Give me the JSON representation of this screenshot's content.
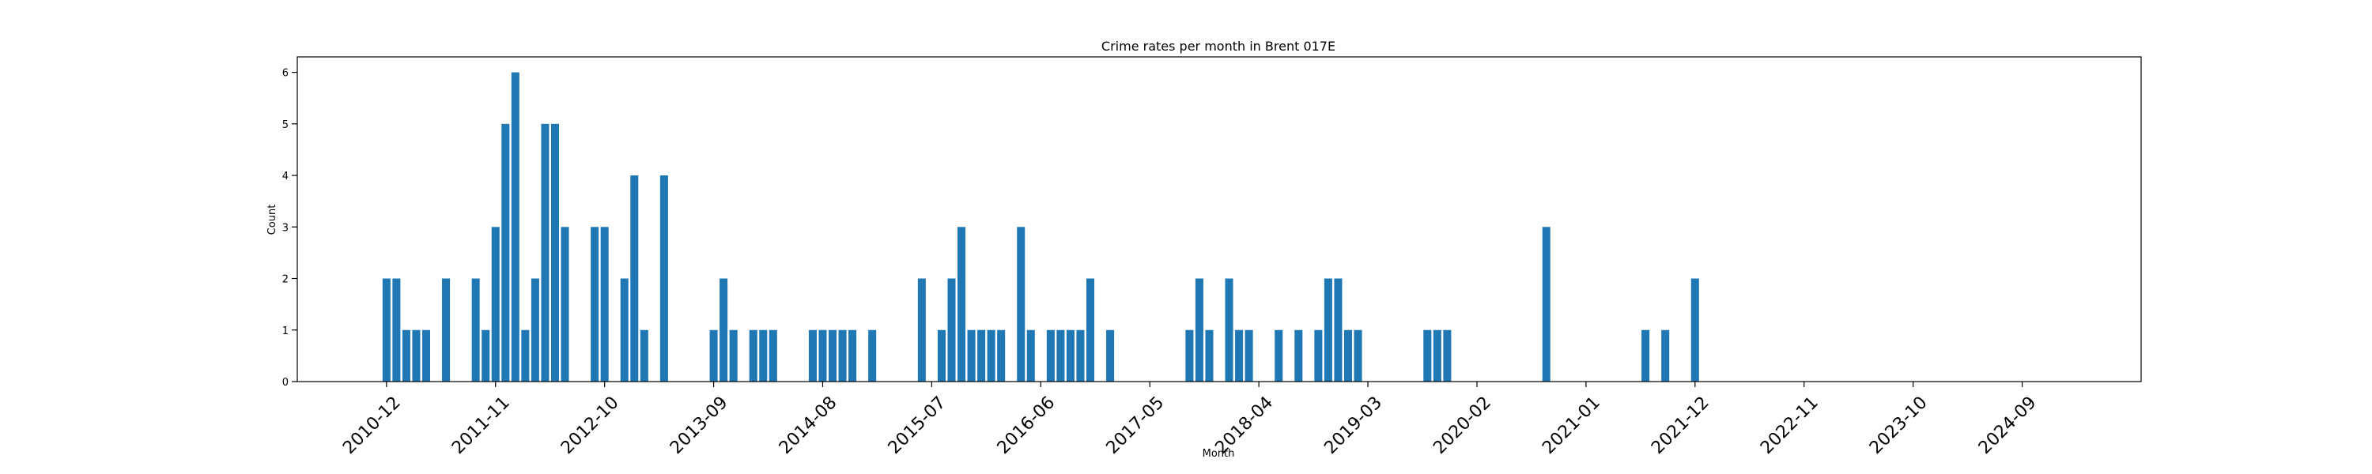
{
  "chart_data": {
    "type": "bar",
    "title": "Crime rates per month in Brent 017E",
    "xlabel": "Month",
    "ylabel": "Count",
    "ylim": [
      0,
      6.3
    ],
    "yticks": [
      0,
      1,
      2,
      3,
      4,
      5,
      6
    ],
    "xlim": [
      "2010-03",
      "2025-09"
    ],
    "xtick_labels": [
      "2010-12",
      "2011-11",
      "2012-10",
      "2013-09",
      "2014-08",
      "2015-07",
      "2016-06",
      "2017-05",
      "2018-04",
      "2019-03",
      "2020-02",
      "2021-01",
      "2021-12",
      "2022-11",
      "2023-10",
      "2024-09"
    ],
    "bar_color": "#1f77b4",
    "grid": false,
    "points": [
      {
        "x": "2010-12",
        "y": 2
      },
      {
        "x": "2011-01",
        "y": 2
      },
      {
        "x": "2011-02",
        "y": 1
      },
      {
        "x": "2011-03",
        "y": 1
      },
      {
        "x": "2011-04",
        "y": 1
      },
      {
        "x": "2011-06",
        "y": 2
      },
      {
        "x": "2011-09",
        "y": 2
      },
      {
        "x": "2011-10",
        "y": 1
      },
      {
        "x": "2011-11",
        "y": 3
      },
      {
        "x": "2011-12",
        "y": 5
      },
      {
        "x": "2012-01",
        "y": 6
      },
      {
        "x": "2012-02",
        "y": 1
      },
      {
        "x": "2012-03",
        "y": 2
      },
      {
        "x": "2012-04",
        "y": 5
      },
      {
        "x": "2012-05",
        "y": 5
      },
      {
        "x": "2012-06",
        "y": 3
      },
      {
        "x": "2012-09",
        "y": 3
      },
      {
        "x": "2012-10",
        "y": 3
      },
      {
        "x": "2012-12",
        "y": 2
      },
      {
        "x": "2013-01",
        "y": 4
      },
      {
        "x": "2013-02",
        "y": 1
      },
      {
        "x": "2013-04",
        "y": 4
      },
      {
        "x": "2013-09",
        "y": 1
      },
      {
        "x": "2013-10",
        "y": 2
      },
      {
        "x": "2013-11",
        "y": 1
      },
      {
        "x": "2014-01",
        "y": 1
      },
      {
        "x": "2014-02",
        "y": 1
      },
      {
        "x": "2014-03",
        "y": 1
      },
      {
        "x": "2014-07",
        "y": 1
      },
      {
        "x": "2014-08",
        "y": 1
      },
      {
        "x": "2014-09",
        "y": 1
      },
      {
        "x": "2014-10",
        "y": 1
      },
      {
        "x": "2014-11",
        "y": 1
      },
      {
        "x": "2015-01",
        "y": 1
      },
      {
        "x": "2015-06",
        "y": 2
      },
      {
        "x": "2015-08",
        "y": 1
      },
      {
        "x": "2015-09",
        "y": 2
      },
      {
        "x": "2015-10",
        "y": 3
      },
      {
        "x": "2015-11",
        "y": 1
      },
      {
        "x": "2015-12",
        "y": 1
      },
      {
        "x": "2016-01",
        "y": 1
      },
      {
        "x": "2016-02",
        "y": 1
      },
      {
        "x": "2016-04",
        "y": 3
      },
      {
        "x": "2016-05",
        "y": 1
      },
      {
        "x": "2016-07",
        "y": 1
      },
      {
        "x": "2016-08",
        "y": 1
      },
      {
        "x": "2016-09",
        "y": 1
      },
      {
        "x": "2016-10",
        "y": 1
      },
      {
        "x": "2016-11",
        "y": 2
      },
      {
        "x": "2017-01",
        "y": 1
      },
      {
        "x": "2017-09",
        "y": 1
      },
      {
        "x": "2017-10",
        "y": 2
      },
      {
        "x": "2017-11",
        "y": 1
      },
      {
        "x": "2018-01",
        "y": 2
      },
      {
        "x": "2018-02",
        "y": 1
      },
      {
        "x": "2018-03",
        "y": 1
      },
      {
        "x": "2018-06",
        "y": 1
      },
      {
        "x": "2018-08",
        "y": 1
      },
      {
        "x": "2018-10",
        "y": 1
      },
      {
        "x": "2018-11",
        "y": 2
      },
      {
        "x": "2018-12",
        "y": 2
      },
      {
        "x": "2019-01",
        "y": 1
      },
      {
        "x": "2019-02",
        "y": 1
      },
      {
        "x": "2019-09",
        "y": 1
      },
      {
        "x": "2019-10",
        "y": 1
      },
      {
        "x": "2019-11",
        "y": 1
      },
      {
        "x": "2020-09",
        "y": 3
      },
      {
        "x": "2021-07",
        "y": 1
      },
      {
        "x": "2021-09",
        "y": 1
      },
      {
        "x": "2021-12",
        "y": 2
      }
    ]
  }
}
